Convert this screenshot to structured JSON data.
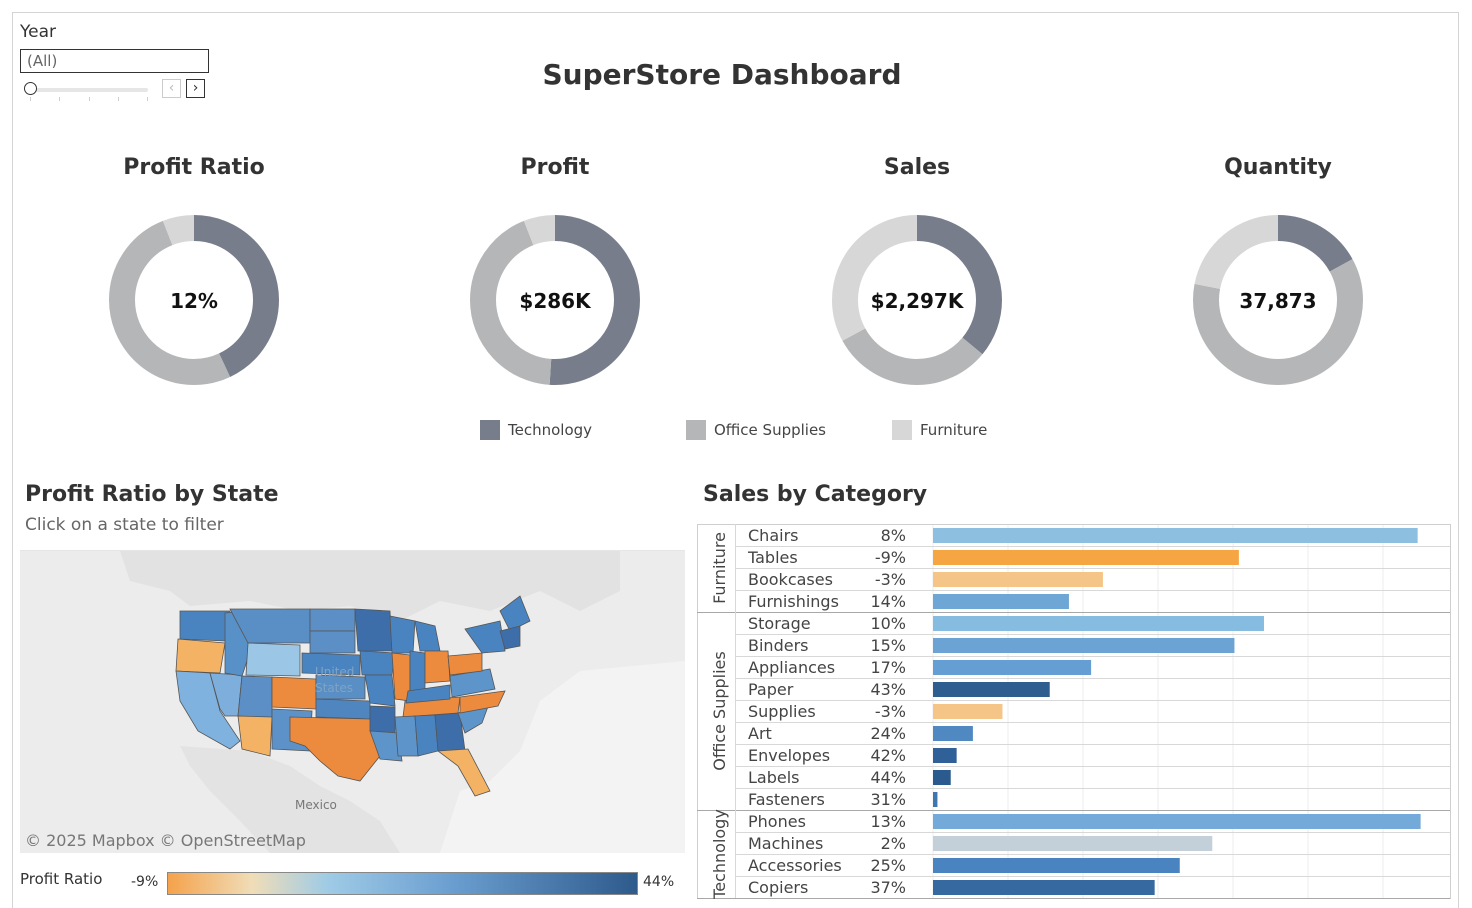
{
  "filter": {
    "label": "Year",
    "selected": "(All)",
    "prev_icon": "chevron-left-icon",
    "next_icon": "chevron-right-icon"
  },
  "dashboard_title": "SuperStore Dashboard",
  "kpis": [
    {
      "title": "Profit Ratio",
      "value": "12%",
      "shares": {
        "Technology": 0.43,
        "Office Supplies": 0.51,
        "Furniture": 0.06
      }
    },
    {
      "title": "Profit",
      "value": "$286K",
      "shares": {
        "Technology": 0.51,
        "Office Supplies": 0.43,
        "Furniture": 0.06
      }
    },
    {
      "title": "Sales",
      "value": "$2,297K",
      "shares": {
        "Technology": 0.36,
        "Office Supplies": 0.31,
        "Furniture": 0.33
      }
    },
    {
      "title": "Quantity",
      "value": "37,873",
      "shares": {
        "Technology": 0.17,
        "Office Supplies": 0.61,
        "Furniture": 0.22
      }
    }
  ],
  "legend": [
    {
      "label": "Technology",
      "color": "#787d8c"
    },
    {
      "label": "Office Supplies",
      "color": "#b4b6b8"
    },
    {
      "label": "Furniture",
      "color": "#d7d7d7"
    }
  ],
  "map": {
    "title": "Profit Ratio by State",
    "subtitle": "Click on a state to filter",
    "place_labels": [
      "United States",
      "Mexico"
    ],
    "credit": "© 2025 Mapbox  © OpenStreetMap",
    "legend_label": "Profit Ratio",
    "legend_min": "-9%",
    "legend_max": "44%"
  },
  "chart_data": {
    "type": "bar",
    "title": "Sales by Category",
    "groups": [
      {
        "category": "Furniture",
        "items": [
          {
            "name": "Chairs",
            "pct": "8%",
            "sales": 328,
            "color": "#8dc0e0"
          },
          {
            "name": "Tables",
            "pct": "-9%",
            "sales": 207,
            "color": "#f5a542"
          },
          {
            "name": "Bookcases",
            "pct": "-3%",
            "sales": 115,
            "color": "#f4c587"
          },
          {
            "name": "Furnishings",
            "pct": "14%",
            "sales": 92,
            "color": "#6ea6d6"
          }
        ]
      },
      {
        "category": "Office Supplies",
        "items": [
          {
            "name": "Storage",
            "pct": "10%",
            "sales": 224,
            "color": "#86bce0"
          },
          {
            "name": "Binders",
            "pct": "15%",
            "sales": 204,
            "color": "#6ba3d5"
          },
          {
            "name": "Appliances",
            "pct": "17%",
            "sales": 107,
            "color": "#649ed3"
          },
          {
            "name": "Paper",
            "pct": "43%",
            "sales": 79,
            "color": "#2e5e90"
          },
          {
            "name": "Supplies",
            "pct": "-3%",
            "sales": 47,
            "color": "#f4c587"
          },
          {
            "name": "Art",
            "pct": "24%",
            "sales": 27,
            "color": "#5088c2"
          },
          {
            "name": "Envelopes",
            "pct": "42%",
            "sales": 16,
            "color": "#2f6097"
          },
          {
            "name": "Labels",
            "pct": "44%",
            "sales": 12,
            "color": "#2b5b8e"
          },
          {
            "name": "Fasteners",
            "pct": "31%",
            "sales": 3,
            "color": "#3f76b0"
          }
        ]
      },
      {
        "category": "Technology",
        "items": [
          {
            "name": "Phones",
            "pct": "13%",
            "sales": 330,
            "color": "#74aad9"
          },
          {
            "name": "Machines",
            "pct": "2%",
            "sales": 189,
            "color": "#c4d0d9"
          },
          {
            "name": "Accessories",
            "pct": "25%",
            "sales": 167,
            "color": "#4a84c0"
          },
          {
            "name": "Copiers",
            "pct": "37%",
            "sales": 150,
            "color": "#36699f"
          }
        ]
      }
    ],
    "xlim": [
      0,
      335
    ],
    "grid": true
  }
}
